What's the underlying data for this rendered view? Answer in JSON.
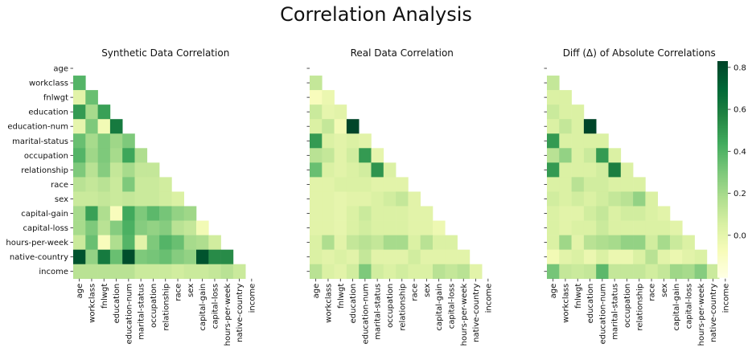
{
  "figure": {
    "title": "Correlation Analysis"
  },
  "chart_data": [
    {
      "type": "heatmap",
      "title": "Synthetic Data Correlation",
      "labels": [
        "age",
        "workclass",
        "fnlwgt",
        "education",
        "education-num",
        "marital-status",
        "occupation",
        "relationship",
        "race",
        "sex",
        "capital-gain",
        "capital-loss",
        "hours-per-week",
        "native-country",
        "income"
      ],
      "mask": "lower-triangle (diagonal hidden)",
      "matrix": [
        [],
        [
          0.4
        ],
        [
          0.02,
          0.35
        ],
        [
          0.5,
          0.2,
          0.48
        ],
        [
          0.0,
          0.3,
          -0.05,
          0.62
        ],
        [
          0.35,
          0.2,
          0.3,
          0.22,
          0.3
        ],
        [
          0.4,
          0.22,
          0.3,
          0.2,
          0.46,
          0.18
        ],
        [
          0.3,
          0.15,
          0.28,
          0.12,
          0.2,
          0.12,
          0.12
        ],
        [
          0.15,
          0.12,
          0.15,
          0.1,
          0.3,
          0.1,
          0.1,
          0.08
        ],
        [
          0.1,
          0.1,
          0.12,
          0.1,
          0.12,
          0.1,
          0.1,
          0.08,
          0.05
        ],
        [
          0.2,
          0.48,
          0.18,
          -0.08,
          0.45,
          0.3,
          0.38,
          0.32,
          0.25,
          0.22
        ],
        [
          0.2,
          0.3,
          0.15,
          0.28,
          0.42,
          0.28,
          0.25,
          0.28,
          0.15,
          0.12,
          -0.05
        ],
        [
          0.1,
          0.35,
          -0.08,
          0.18,
          0.4,
          0.02,
          0.3,
          0.4,
          0.35,
          0.2,
          0.18,
          0.08
        ],
        [
          0.78,
          0.25,
          0.62,
          0.35,
          0.8,
          0.3,
          0.32,
          0.35,
          0.28,
          0.25,
          0.78,
          0.55,
          0.55
        ],
        [
          0.15,
          0.15,
          0.15,
          0.15,
          0.15,
          0.1,
          0.1,
          0.1,
          0.08,
          0.1,
          0.1,
          0.12,
          0.15,
          0.1
        ]
      ]
    },
    {
      "type": "heatmap",
      "title": "Real Data Correlation",
      "labels": [
        "age",
        "workclass",
        "fnlwgt",
        "education",
        "education-num",
        "marital-status",
        "occupation",
        "relationship",
        "race",
        "sex",
        "capital-gain",
        "capital-loss",
        "hours-per-week",
        "native-country",
        "income"
      ],
      "mask": "lower-triangle (diagonal hidden)",
      "matrix": [
        [],
        [
          0.12
        ],
        [
          -0.08,
          -0.02
        ],
        [
          0.1,
          0.0,
          0.02
        ],
        [
          0.05,
          0.12,
          -0.05,
          0.83
        ],
        [
          0.5,
          0.05,
          0.02,
          0.05,
          0.02
        ],
        [
          0.15,
          0.12,
          0.02,
          0.08,
          0.5,
          0.0
        ],
        [
          0.35,
          0.05,
          0.02,
          0.05,
          0.08,
          0.52,
          0.05
        ],
        [
          0.02,
          0.02,
          0.05,
          0.05,
          0.05,
          0.02,
          0.02,
          0.02
        ],
        [
          0.02,
          0.02,
          0.0,
          0.02,
          0.02,
          0.05,
          0.08,
          0.12,
          0.02
        ],
        [
          0.02,
          0.02,
          0.0,
          0.05,
          0.1,
          0.05,
          0.05,
          0.05,
          0.02,
          0.02
        ],
        [
          0.02,
          0.02,
          0.0,
          0.05,
          0.08,
          0.05,
          0.05,
          0.05,
          0.02,
          0.02,
          -0.03
        ],
        [
          0.05,
          0.18,
          0.02,
          0.12,
          0.15,
          0.12,
          0.2,
          0.2,
          0.05,
          0.15,
          0.05,
          0.05
        ],
        [
          0.05,
          0.02,
          0.05,
          0.02,
          0.12,
          0.02,
          0.02,
          0.02,
          0.08,
          0.02,
          0.02,
          0.02,
          0.02
        ],
        [
          0.15,
          0.05,
          0.02,
          0.08,
          0.3,
          0.08,
          0.05,
          0.08,
          0.05,
          0.05,
          0.15,
          0.12,
          0.15,
          0.02
        ]
      ]
    },
    {
      "type": "heatmap",
      "title": "Diff (Δ) of Absolute Correlations",
      "labels": [
        "age",
        "workclass",
        "fnlwgt",
        "education",
        "education-num",
        "marital-status",
        "occupation",
        "relationship",
        "race",
        "sex",
        "capital-gain",
        "capital-loss",
        "hours-per-week",
        "native-country",
        "income"
      ],
      "mask": "lower-triangle (diagonal hidden)",
      "matrix": [
        [],
        [
          0.12
        ],
        [
          0.05,
          0.05
        ],
        [
          0.1,
          0.05,
          0.05
        ],
        [
          0.05,
          0.12,
          0.05,
          0.83
        ],
        [
          0.5,
          0.05,
          0.05,
          0.05,
          0.05
        ],
        [
          0.15,
          0.25,
          0.05,
          0.1,
          0.5,
          0.05
        ],
        [
          0.5,
          0.05,
          0.05,
          0.05,
          0.08,
          0.6,
          0.05
        ],
        [
          0.05,
          0.05,
          0.15,
          0.08,
          0.08,
          0.05,
          0.05,
          0.05
        ],
        [
          0.08,
          0.05,
          0.08,
          0.05,
          0.08,
          0.12,
          0.15,
          0.25,
          0.05
        ],
        [
          0.05,
          0.02,
          0.02,
          0.08,
          0.12,
          0.05,
          0.08,
          0.08,
          0.05,
          0.02
        ],
        [
          0.05,
          0.02,
          0.05,
          0.05,
          0.1,
          0.05,
          0.05,
          0.05,
          0.05,
          0.05,
          0.02
        ],
        [
          0.05,
          0.22,
          0.02,
          0.15,
          0.18,
          0.2,
          0.25,
          0.25,
          0.08,
          0.2,
          0.1,
          0.05
        ],
        [
          -0.05,
          0.02,
          0.05,
          -0.02,
          0.05,
          -0.02,
          -0.02,
          0.05,
          0.15,
          0.02,
          -0.02,
          0.02,
          0.05
        ],
        [
          0.32,
          0.12,
          0.1,
          0.12,
          0.38,
          0.12,
          0.12,
          0.12,
          0.08,
          0.12,
          0.22,
          0.2,
          0.28,
          0.1
        ]
      ]
    }
  ],
  "colorbar": {
    "cmap": "YlGn",
    "vmin": -0.2,
    "vmax": 0.83,
    "tick_values": [
      0.0,
      0.2,
      0.4,
      0.6,
      0.8
    ],
    "tick_labels": [
      "0.0",
      "0.2",
      "0.4",
      "0.6",
      "0.8"
    ]
  }
}
